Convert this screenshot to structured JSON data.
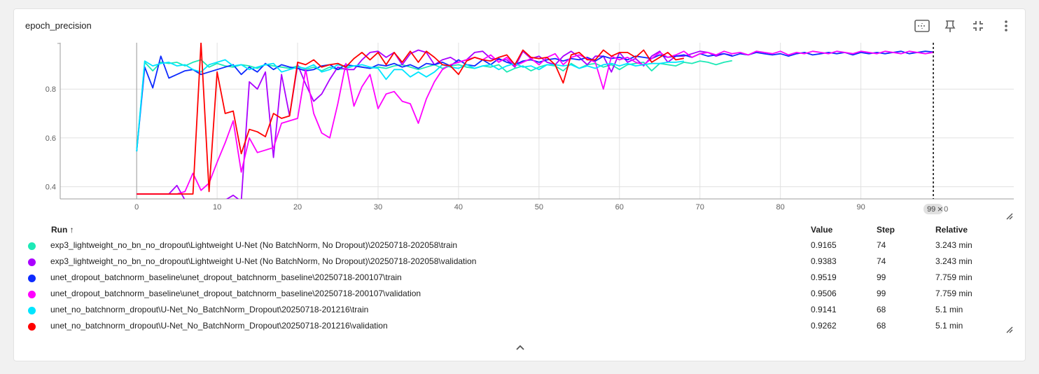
{
  "card": {
    "title": "epoch_precision"
  },
  "toolbar": {
    "icons": [
      "fit-domain-icon",
      "pin-icon",
      "collapse-fullscreen-icon",
      "more-vert-icon"
    ]
  },
  "chart_data": {
    "type": "line",
    "xlabel": "",
    "ylabel": "",
    "xlim": [
      -9.5,
      109
    ],
    "ylim": [
      0.35,
      0.99
    ],
    "x_ticks": [
      0,
      10,
      20,
      30,
      40,
      50,
      60,
      70,
      80,
      90
    ],
    "y_ticks": [
      0.4,
      0.6,
      0.8
    ],
    "y_tick_labels": [
      "0.4",
      "0.6",
      "0.8"
    ],
    "grid": true,
    "cursor": {
      "step": 99,
      "label": "99",
      "truncated_label": "0"
    },
    "series": [
      {
        "name": "exp3_lightweight_no_bn_no_dropout\\Lightweight U-Net (No BatchNorm, No Dropout)\\20250718-202058\\train",
        "color": "#1de9b6",
        "x": [
          0,
          1,
          2,
          3,
          4,
          5,
          6,
          7,
          8,
          9,
          10,
          11,
          12,
          13,
          14,
          15,
          16,
          17,
          18,
          19,
          20,
          21,
          22,
          23,
          24,
          25,
          26,
          27,
          28,
          29,
          30,
          31,
          32,
          33,
          34,
          35,
          36,
          37,
          38,
          39,
          40,
          41,
          42,
          43,
          44,
          45,
          46,
          47,
          48,
          49,
          50,
          51,
          52,
          53,
          54,
          55,
          56,
          57,
          58,
          59,
          60,
          61,
          62,
          63,
          64,
          65,
          66,
          67,
          68,
          69,
          70,
          71,
          72,
          73,
          74
        ],
        "y": [
          0.545,
          0.91,
          0.875,
          0.91,
          0.905,
          0.91,
          0.895,
          0.91,
          0.92,
          0.89,
          0.905,
          0.895,
          0.89,
          0.9,
          0.895,
          0.885,
          0.9,
          0.895,
          0.89,
          0.885,
          0.895,
          0.88,
          0.89,
          0.875,
          0.89,
          0.88,
          0.885,
          0.895,
          0.89,
          0.885,
          0.89,
          0.885,
          0.895,
          0.9,
          0.89,
          0.88,
          0.89,
          0.9,
          0.885,
          0.895,
          0.9,
          0.89,
          0.885,
          0.895,
          0.89,
          0.9,
          0.87,
          0.885,
          0.895,
          0.875,
          0.89,
          0.9,
          0.895,
          0.875,
          0.905,
          0.885,
          0.9,
          0.905,
          0.89,
          0.9,
          0.88,
          0.9,
          0.905,
          0.91,
          0.875,
          0.905,
          0.9,
          0.895,
          0.91,
          0.905,
          0.915,
          0.91,
          0.9,
          0.91,
          0.9165
        ]
      },
      {
        "name": "exp3_lightweight_no_bn_no_dropout\\Lightweight U-Net (No BatchNorm, No Dropout)\\20250718-202058\\validation",
        "color": "#aa00ff",
        "x": [
          0,
          1,
          2,
          3,
          4,
          5,
          6,
          7,
          8,
          9,
          10,
          11,
          12,
          13,
          14,
          15,
          16,
          17,
          18,
          19,
          20,
          21,
          22,
          23,
          24,
          25,
          26,
          27,
          28,
          29,
          30,
          31,
          32,
          33,
          34,
          35,
          36,
          37,
          38,
          39,
          40,
          41,
          42,
          43,
          44,
          45,
          46,
          47,
          48,
          49,
          50,
          51,
          52,
          53,
          54,
          55,
          56,
          57,
          58,
          59,
          60,
          61,
          62,
          63,
          64,
          65,
          66,
          67,
          68,
          69,
          70,
          71,
          72,
          73,
          74
        ],
        "y": [
          0.37,
          0.37,
          0.37,
          0.37,
          0.37,
          0.405,
          0.345,
          0.345,
          0.345,
          0.345,
          0.345,
          0.345,
          0.365,
          0.34,
          0.83,
          0.8,
          0.87,
          0.52,
          0.86,
          0.69,
          0.9,
          0.82,
          0.75,
          0.78,
          0.84,
          0.89,
          0.88,
          0.88,
          0.92,
          0.95,
          0.955,
          0.93,
          0.95,
          0.9,
          0.945,
          0.96,
          0.95,
          0.9,
          0.92,
          0.93,
          0.91,
          0.92,
          0.95,
          0.955,
          0.925,
          0.92,
          0.92,
          0.89,
          0.955,
          0.925,
          0.935,
          0.91,
          0.9,
          0.935,
          0.955,
          0.93,
          0.9,
          0.935,
          0.935,
          0.87,
          0.95,
          0.91,
          0.925,
          0.895,
          0.935,
          0.955,
          0.91,
          0.935,
          0.935,
          0.945,
          0.955,
          0.95,
          0.935,
          0.945,
          0.9383
        ]
      },
      {
        "name": "unet_dropout_batchnorm_baseline\\unet_dropout_batchnorm_baseline\\20250718-200107\\train",
        "color": "#0d2bff",
        "x": [
          0,
          1,
          2,
          3,
          4,
          5,
          6,
          7,
          8,
          9,
          10,
          11,
          12,
          13,
          14,
          15,
          16,
          17,
          18,
          19,
          20,
          21,
          22,
          23,
          24,
          25,
          26,
          27,
          28,
          29,
          30,
          31,
          32,
          33,
          34,
          35,
          36,
          37,
          38,
          39,
          40,
          41,
          42,
          43,
          44,
          45,
          46,
          47,
          48,
          49,
          50,
          51,
          52,
          53,
          54,
          55,
          56,
          57,
          58,
          59,
          60,
          61,
          62,
          63,
          64,
          65,
          66,
          67,
          68,
          69,
          70,
          71,
          72,
          73,
          74,
          75,
          76,
          77,
          78,
          79,
          80,
          81,
          82,
          83,
          84,
          85,
          86,
          87,
          88,
          89,
          90,
          91,
          92,
          93,
          94,
          95,
          96,
          97,
          98,
          99
        ],
        "y": [
          0.545,
          0.89,
          0.805,
          0.935,
          0.845,
          0.86,
          0.875,
          0.88,
          0.86,
          0.87,
          0.88,
          0.89,
          0.9,
          0.86,
          0.89,
          0.87,
          0.905,
          0.88,
          0.9,
          0.89,
          0.885,
          0.875,
          0.88,
          0.895,
          0.9,
          0.88,
          0.9,
          0.895,
          0.89,
          0.885,
          0.9,
          0.895,
          0.905,
          0.89,
          0.9,
          0.885,
          0.905,
          0.9,
          0.91,
          0.895,
          0.92,
          0.9,
          0.895,
          0.92,
          0.9,
          0.925,
          0.91,
          0.9,
          0.915,
          0.92,
          0.91,
          0.92,
          0.925,
          0.915,
          0.925,
          0.92,
          0.93,
          0.915,
          0.935,
          0.925,
          0.93,
          0.92,
          0.935,
          0.93,
          0.925,
          0.94,
          0.93,
          0.935,
          0.94,
          0.93,
          0.945,
          0.935,
          0.94,
          0.945,
          0.935,
          0.945,
          0.94,
          0.95,
          0.945,
          0.94,
          0.945,
          0.935,
          0.945,
          0.95,
          0.94,
          0.945,
          0.95,
          0.945,
          0.95,
          0.94,
          0.95,
          0.945,
          0.95,
          0.945,
          0.95,
          0.955,
          0.945,
          0.95,
          0.955,
          0.9519
        ]
      },
      {
        "name": "unet_dropout_batchnorm_baseline\\unet_dropout_batchnorm_baseline\\20250718-200107\\validation",
        "color": "#ff00ff",
        "x": [
          0,
          1,
          2,
          3,
          4,
          5,
          6,
          7,
          8,
          9,
          10,
          11,
          12,
          13,
          14,
          15,
          16,
          17,
          18,
          19,
          20,
          21,
          22,
          23,
          24,
          25,
          26,
          27,
          28,
          29,
          30,
          31,
          32,
          33,
          34,
          35,
          36,
          37,
          38,
          39,
          40,
          41,
          42,
          43,
          44,
          45,
          46,
          47,
          48,
          49,
          50,
          51,
          52,
          53,
          54,
          55,
          56,
          57,
          58,
          59,
          60,
          61,
          62,
          63,
          64,
          65,
          66,
          67,
          68,
          69,
          70,
          71,
          72,
          73,
          74,
          75,
          76,
          77,
          78,
          79,
          80,
          81,
          82,
          83,
          84,
          85,
          86,
          87,
          88,
          89,
          90,
          91,
          92,
          93,
          94,
          95,
          96,
          97,
          98,
          99
        ],
        "y": [
          0.37,
          0.37,
          0.37,
          0.37,
          0.37,
          0.37,
          0.38,
          0.455,
          0.385,
          0.415,
          0.5,
          0.58,
          0.67,
          0.46,
          0.6,
          0.54,
          0.55,
          0.56,
          0.66,
          0.67,
          0.68,
          0.88,
          0.7,
          0.62,
          0.6,
          0.74,
          0.905,
          0.73,
          0.81,
          0.86,
          0.72,
          0.78,
          0.79,
          0.75,
          0.74,
          0.66,
          0.76,
          0.83,
          0.88,
          0.9,
          0.91,
          0.92,
          0.93,
          0.92,
          0.94,
          0.91,
          0.93,
          0.895,
          0.91,
          0.925,
          0.9,
          0.93,
          0.945,
          0.9,
          0.93,
          0.94,
          0.925,
          0.91,
          0.8,
          0.935,
          0.92,
          0.93,
          0.91,
          0.9,
          0.925,
          0.95,
          0.93,
          0.94,
          0.955,
          0.93,
          0.945,
          0.95,
          0.94,
          0.955,
          0.945,
          0.95,
          0.94,
          0.955,
          0.95,
          0.945,
          0.955,
          0.94,
          0.95,
          0.945,
          0.955,
          0.95,
          0.945,
          0.955,
          0.95,
          0.945,
          0.955,
          0.95,
          0.945,
          0.955,
          0.95,
          0.945,
          0.955,
          0.95,
          0.945,
          0.9506
        ]
      },
      {
        "name": "unet_no_batchnorm_dropout\\U-Net_No_BatchNorm_Dropout\\20250718-201216\\train",
        "color": "#00e5ff",
        "x": [
          0,
          1,
          2,
          3,
          4,
          5,
          6,
          7,
          8,
          9,
          10,
          11,
          12,
          13,
          14,
          15,
          16,
          17,
          18,
          19,
          20,
          21,
          22,
          23,
          24,
          25,
          26,
          27,
          28,
          29,
          30,
          31,
          32,
          33,
          34,
          35,
          36,
          37,
          38,
          39,
          40,
          41,
          42,
          43,
          44,
          45,
          46,
          47,
          48,
          49,
          50,
          51,
          52,
          53,
          54,
          55,
          56,
          57,
          58,
          59,
          60,
          61,
          62,
          63,
          64,
          65,
          66,
          67,
          68
        ],
        "y": [
          0.545,
          0.915,
          0.895,
          0.905,
          0.91,
          0.895,
          0.9,
          0.88,
          0.87,
          0.9,
          0.91,
          0.92,
          0.895,
          0.9,
          0.88,
          0.89,
          0.9,
          0.905,
          0.87,
          0.88,
          0.89,
          0.885,
          0.9,
          0.87,
          0.88,
          0.9,
          0.89,
          0.895,
          0.9,
          0.89,
          0.885,
          0.84,
          0.88,
          0.88,
          0.85,
          0.87,
          0.85,
          0.87,
          0.9,
          0.89,
          0.885,
          0.9,
          0.885,
          0.895,
          0.9,
          0.88,
          0.895,
          0.905,
          0.89,
          0.895,
          0.88,
          0.9,
          0.9,
          0.895,
          0.9,
          0.885,
          0.895,
          0.885,
          0.9,
          0.905,
          0.895,
          0.905,
          0.895,
          0.9,
          0.905,
          0.905,
          0.91,
          0.91,
          0.9141
        ]
      },
      {
        "name": "unet_no_batchnorm_dropout\\U-Net_No_BatchNorm_Dropout\\20250718-201216\\validation",
        "color": "#ff0000",
        "x": [
          0,
          1,
          2,
          3,
          4,
          5,
          6,
          7,
          8,
          9,
          10,
          11,
          12,
          13,
          14,
          15,
          16,
          17,
          18,
          19,
          20,
          21,
          22,
          23,
          24,
          25,
          26,
          27,
          28,
          29,
          30,
          31,
          32,
          33,
          34,
          35,
          36,
          37,
          38,
          39,
          40,
          41,
          42,
          43,
          44,
          45,
          46,
          47,
          48,
          49,
          50,
          51,
          52,
          53,
          54,
          55,
          56,
          57,
          58,
          59,
          60,
          61,
          62,
          63,
          64,
          65,
          66,
          67,
          68
        ],
        "y": [
          0.37,
          0.37,
          0.37,
          0.37,
          0.37,
          0.37,
          0.37,
          0.37,
          0.99,
          0.38,
          0.87,
          0.7,
          0.71,
          0.535,
          0.635,
          0.625,
          0.605,
          0.7,
          0.68,
          0.69,
          0.91,
          0.9,
          0.92,
          0.89,
          0.9,
          0.905,
          0.89,
          0.925,
          0.95,
          0.92,
          0.95,
          0.9,
          0.95,
          0.91,
          0.955,
          0.91,
          0.955,
          0.93,
          0.9,
          0.895,
          0.86,
          0.915,
          0.93,
          0.92,
          0.915,
          0.93,
          0.94,
          0.9,
          0.96,
          0.93,
          0.925,
          0.93,
          0.9,
          0.825,
          0.94,
          0.95,
          0.92,
          0.92,
          0.96,
          0.935,
          0.95,
          0.95,
          0.93,
          0.96,
          0.91,
          0.93,
          0.95,
          0.92,
          0.9262
        ]
      }
    ]
  },
  "legend": {
    "headers": {
      "run": "Run ↑",
      "value": "Value",
      "step": "Step",
      "relative": "Relative"
    },
    "rows": [
      {
        "run": "exp3_lightweight_no_bn_no_dropout\\Lightweight U-Net (No BatchNorm, No Dropout)\\20250718-202058\\train",
        "value": "0.9165",
        "step": "74",
        "relative": "3.243 min",
        "color": "#1de9b6"
      },
      {
        "run": "exp3_lightweight_no_bn_no_dropout\\Lightweight U-Net (No BatchNorm, No Dropout)\\20250718-202058\\validation",
        "value": "0.9383",
        "step": "74",
        "relative": "3.243 min",
        "color": "#aa00ff"
      },
      {
        "run": "unet_dropout_batchnorm_baseline\\unet_dropout_batchnorm_baseline\\20250718-200107\\train",
        "value": "0.9519",
        "step": "99",
        "relative": "7.759 min",
        "color": "#0d2bff"
      },
      {
        "run": "unet_dropout_batchnorm_baseline\\unet_dropout_batchnorm_baseline\\20250718-200107\\validation",
        "value": "0.9506",
        "step": "99",
        "relative": "7.759 min",
        "color": "#ff00ff"
      },
      {
        "run": "unet_no_batchnorm_dropout\\U-Net_No_BatchNorm_Dropout\\20250718-201216\\train",
        "value": "0.9141",
        "step": "68",
        "relative": "5.1 min",
        "color": "#00e5ff"
      },
      {
        "run": "unet_no_batchnorm_dropout\\U-Net_No_BatchNorm_Dropout\\20250718-201216\\validation",
        "value": "0.9262",
        "step": "68",
        "relative": "5.1 min",
        "color": "#ff0000"
      }
    ]
  }
}
